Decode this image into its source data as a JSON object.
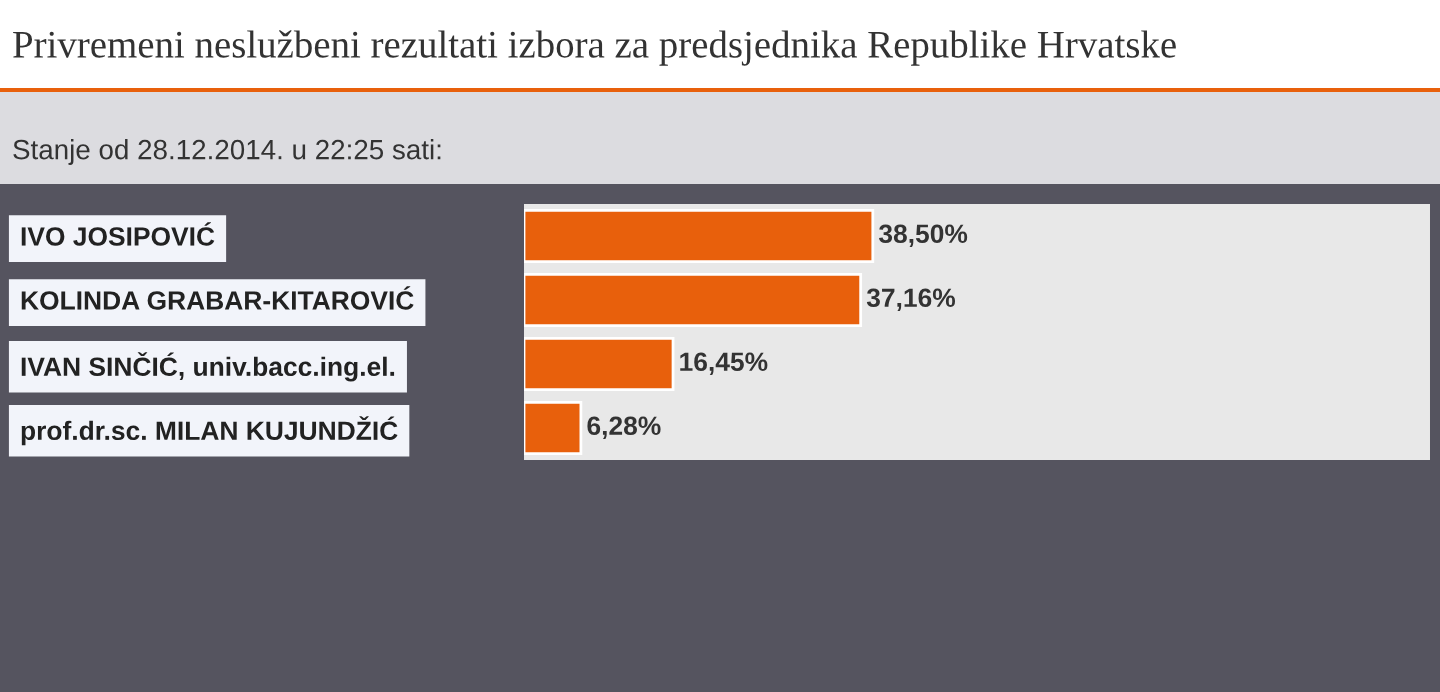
{
  "chart_data": {
    "type": "bar",
    "orientation": "horizontal",
    "title": "Privremeni neslužbeni rezultati izbora za predsjednika Republike Hrvatske",
    "subtitle": "Stanje od 28.12.2014. u 22:25 sati:",
    "categories": [
      "IVO JOSIPOVIĆ",
      "KOLINDA GRABAR-KITAROVIĆ",
      "IVAN SINČIĆ, univ.bacc.ing.el.",
      "prof.dr.sc. MILAN KUJUNDŽIĆ"
    ],
    "values": [
      38.5,
      37.16,
      16.45,
      6.28
    ],
    "value_labels": [
      "38,50%",
      "37,16%",
      "16,45%",
      "6,28%"
    ],
    "color": "#e8600c",
    "xlim": [
      0,
      100
    ],
    "grid": false,
    "legend": false
  }
}
